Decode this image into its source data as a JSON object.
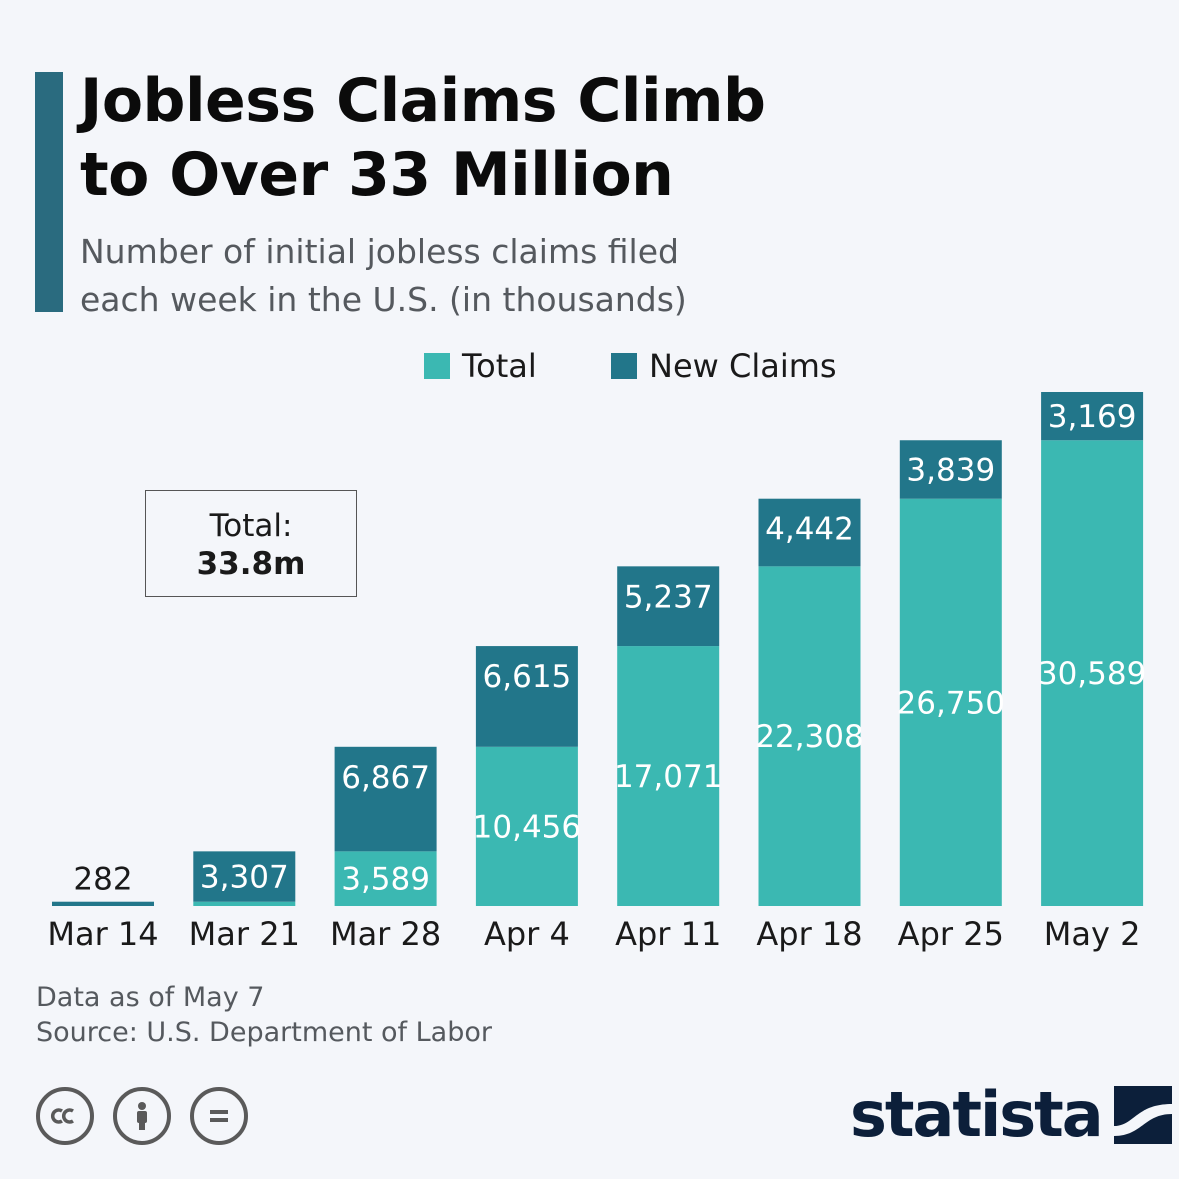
{
  "header": {
    "title_line1": "Jobless Claims Climb",
    "title_line2": "to Over 33 Million",
    "subtitle_line1": "Number of initial jobless claims filed",
    "subtitle_line2": "each week in the U.S. (in thousands)"
  },
  "note": {
    "label": "Total:",
    "value": "33.8m"
  },
  "footer": {
    "data_note": "Data as of May 7",
    "source": "Source: U.S. Department of Labor"
  },
  "brand": {
    "name": "statista"
  },
  "icons": [
    "cc-icon",
    "by-icon",
    "nd-icon"
  ],
  "colors": {
    "total": "#3bb8b2",
    "new_claims": "#22768a",
    "accent": "#2a6b7f",
    "logo": "#0c1f3a"
  },
  "chart_data": {
    "type": "bar",
    "stacked": true,
    "categories": [
      "Mar 14",
      "Mar 21",
      "Mar 28",
      "Apr 4",
      "Apr 11",
      "Apr 18",
      "Apr 25",
      "May 2"
    ],
    "series": [
      {
        "name": "Total",
        "values": [
          0,
          282,
          3589,
          10456,
          17071,
          22308,
          26750,
          30589
        ]
      },
      {
        "name": "New Claims",
        "values": [
          282,
          3307,
          6867,
          6615,
          5237,
          4442,
          3839,
          3169
        ]
      }
    ],
    "value_labels": {
      "Total": [
        "",
        "",
        "3,589",
        "10,456",
        "17,071",
        "22,308",
        "26,750",
        "30,589"
      ],
      "New Claims": [
        "282",
        "3,307",
        "6,867",
        "6,615",
        "5,237",
        "4,442",
        "3,839",
        "3,169"
      ]
    },
    "legend": [
      "Total",
      "New Claims"
    ],
    "legend_position": "top",
    "ylim": [
      0,
      34000
    ],
    "grid": false
  }
}
